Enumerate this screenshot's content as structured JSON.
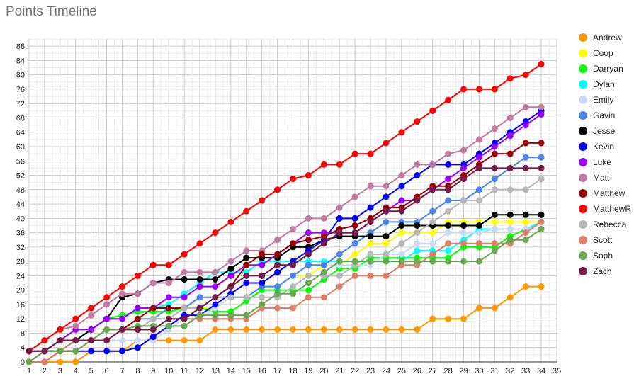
{
  "chart_data": {
    "type": "line",
    "title": "Points Timeline",
    "xlabel": "",
    "ylabel": "",
    "x": [
      1,
      2,
      3,
      4,
      5,
      6,
      7,
      8,
      9,
      10,
      11,
      12,
      13,
      14,
      15,
      16,
      17,
      18,
      19,
      20,
      21,
      22,
      23,
      24,
      25,
      26,
      27,
      28,
      29,
      30,
      31,
      32,
      33,
      34
    ],
    "x_ticks": [
      1,
      2,
      3,
      4,
      5,
      6,
      7,
      8,
      9,
      10,
      11,
      12,
      13,
      14,
      15,
      16,
      17,
      18,
      19,
      20,
      21,
      22,
      23,
      24,
      25,
      26,
      27,
      28,
      29,
      30,
      31,
      32,
      33,
      34,
      35
    ],
    "xlim": [
      1,
      35
    ],
    "y_ticks": [
      0,
      4,
      8,
      12,
      16,
      20,
      24,
      28,
      32,
      36,
      40,
      44,
      48,
      52,
      56,
      60,
      64,
      68,
      72,
      76,
      80,
      84,
      88
    ],
    "ylim": [
      0,
      90
    ],
    "grid": true,
    "legend_position": "right",
    "series": [
      {
        "name": "Andrew",
        "color": "#ff9900",
        "values": [
          0,
          0,
          0,
          0,
          3,
          3,
          3,
          6,
          6,
          6,
          6,
          6,
          9,
          9,
          9,
          9,
          9,
          9,
          9,
          9,
          9,
          9,
          9,
          9,
          9,
          9,
          12,
          12,
          12,
          15,
          15,
          18,
          21,
          21
        ]
      },
      {
        "name": "Coop",
        "color": "#ffff00",
        "values": [
          0,
          0,
          3,
          3,
          6,
          6,
          9,
          9,
          12,
          12,
          15,
          15,
          15,
          18,
          18,
          21,
          21,
          24,
          24,
          27,
          27,
          30,
          33,
          33,
          36,
          36,
          36,
          39,
          39,
          39,
          39,
          39,
          39,
          39
        ]
      },
      {
        "name": "Darryan",
        "color": "#00ff00",
        "values": [
          0,
          3,
          3,
          6,
          9,
          12,
          13,
          14,
          14,
          14,
          15,
          15,
          14,
          14,
          17,
          20,
          20,
          20,
          20,
          23,
          26,
          26,
          29,
          29,
          29,
          29,
          29,
          29,
          32,
          32,
          32,
          35,
          37,
          37
        ]
      },
      {
        "name": "Dylan",
        "color": "#00ffff",
        "values": [
          0,
          3,
          3,
          6,
          9,
          12,
          12,
          15,
          15,
          16,
          19,
          22,
          25,
          25,
          25,
          28,
          28,
          28,
          28,
          28,
          28,
          28,
          28,
          28,
          28,
          31,
          31,
          31,
          34,
          37,
          37,
          37,
          37,
          39
        ]
      },
      {
        "name": "Emily",
        "color": "#c9daf8",
        "values": [
          0,
          3,
          3,
          3,
          6,
          6,
          6,
          6,
          6,
          9,
          12,
          12,
          15,
          18,
          18,
          21,
          21,
          24,
          27,
          27,
          27,
          27,
          27,
          30,
          30,
          33,
          33,
          36,
          36,
          36,
          37,
          37,
          37,
          37
        ]
      },
      {
        "name": "Gavin",
        "color": "#4a86e8",
        "values": [
          0,
          3,
          3,
          6,
          6,
          9,
          9,
          12,
          12,
          15,
          15,
          18,
          18,
          18,
          18,
          21,
          21,
          24,
          27,
          27,
          30,
          33,
          36,
          39,
          39,
          39,
          42,
          45,
          45,
          48,
          51,
          54,
          57,
          57
        ]
      },
      {
        "name": "Jesse",
        "color": "#000000",
        "values": [
          3,
          3,
          6,
          6,
          9,
          12,
          18,
          19,
          22,
          23,
          23,
          23,
          23,
          26,
          29,
          29,
          29,
          32,
          32,
          34,
          35,
          35,
          35,
          35,
          38,
          38,
          38,
          38,
          38,
          38,
          41,
          41,
          41,
          41
        ]
      },
      {
        "name": "Kevin",
        "color": "#0000ff",
        "values": [
          0,
          3,
          3,
          3,
          3,
          3,
          3,
          4,
          7,
          10,
          13,
          13,
          16,
          19,
          22,
          22,
          25,
          28,
          31,
          34,
          40,
          40,
          43,
          46,
          49,
          52,
          55,
          55,
          55,
          58,
          61,
          64,
          67,
          70
        ]
      },
      {
        "name": "Luke",
        "color": "#9900ff",
        "values": [
          3,
          3,
          6,
          9,
          9,
          12,
          12,
          15,
          15,
          18,
          18,
          21,
          21,
          24,
          27,
          27,
          30,
          33,
          36,
          36,
          36,
          36,
          39,
          42,
          45,
          45,
          48,
          51,
          54,
          57,
          60,
          63,
          66,
          69
        ]
      },
      {
        "name": "Matt",
        "color": "#c27ba0",
        "values": [
          3,
          6,
          9,
          10,
          13,
          16,
          19,
          19,
          22,
          22,
          25,
          25,
          25,
          28,
          31,
          31,
          34,
          37,
          40,
          40,
          43,
          46,
          49,
          49,
          52,
          55,
          55,
          58,
          59,
          62,
          65,
          68,
          71,
          71
        ]
      },
      {
        "name": "Matthew",
        "color": "#990000",
        "values": [
          0,
          0,
          3,
          3,
          6,
          6,
          9,
          12,
          15,
          15,
          15,
          15,
          18,
          21,
          27,
          30,
          30,
          33,
          34,
          35,
          37,
          38,
          40,
          43,
          43,
          46,
          49,
          49,
          52,
          55,
          58,
          58,
          61,
          61
        ]
      },
      {
        "name": "MatthewR",
        "color": "#ff0000",
        "values": [
          3,
          6,
          9,
          12,
          15,
          18,
          21,
          24,
          27,
          27,
          30,
          33,
          36,
          39,
          42,
          45,
          48,
          51,
          52,
          55,
          55,
          58,
          58,
          61,
          64,
          67,
          70,
          73,
          76,
          76,
          76,
          79,
          80,
          83
        ]
      },
      {
        "name": "Rebecca",
        "color": "#b7b7b7",
        "values": [
          0,
          3,
          3,
          6,
          6,
          6,
          9,
          9,
          12,
          12,
          15,
          15,
          18,
          18,
          18,
          18,
          18,
          21,
          24,
          24,
          24,
          27,
          30,
          30,
          33,
          36,
          39,
          42,
          45,
          45,
          48,
          48,
          48,
          51
        ]
      },
      {
        "name": "Scott",
        "color": "#dd7e6b",
        "values": [
          0,
          0,
          3,
          6,
          6,
          9,
          9,
          9,
          9,
          12,
          12,
          12,
          12,
          12,
          12,
          15,
          15,
          15,
          18,
          18,
          21,
          24,
          24,
          24,
          27,
          27,
          30,
          33,
          33,
          33,
          33,
          33,
          36,
          39
        ]
      },
      {
        "name": "Soph",
        "color": "#6aa84f",
        "values": [
          0,
          3,
          3,
          3,
          6,
          9,
          9,
          10,
          10,
          10,
          10,
          13,
          13,
          13,
          13,
          16,
          19,
          19,
          22,
          25,
          28,
          28,
          28,
          28,
          28,
          28,
          28,
          28,
          28,
          28,
          31,
          34,
          34,
          37
        ]
      },
      {
        "name": "Zach",
        "color": "#741b47",
        "values": [
          3,
          3,
          6,
          6,
          6,
          6,
          9,
          9,
          9,
          12,
          12,
          15,
          18,
          21,
          24,
          24,
          27,
          27,
          30,
          33,
          36,
          36,
          39,
          42,
          42,
          45,
          48,
          48,
          51,
          54,
          54,
          54,
          54,
          54
        ]
      }
    ]
  }
}
